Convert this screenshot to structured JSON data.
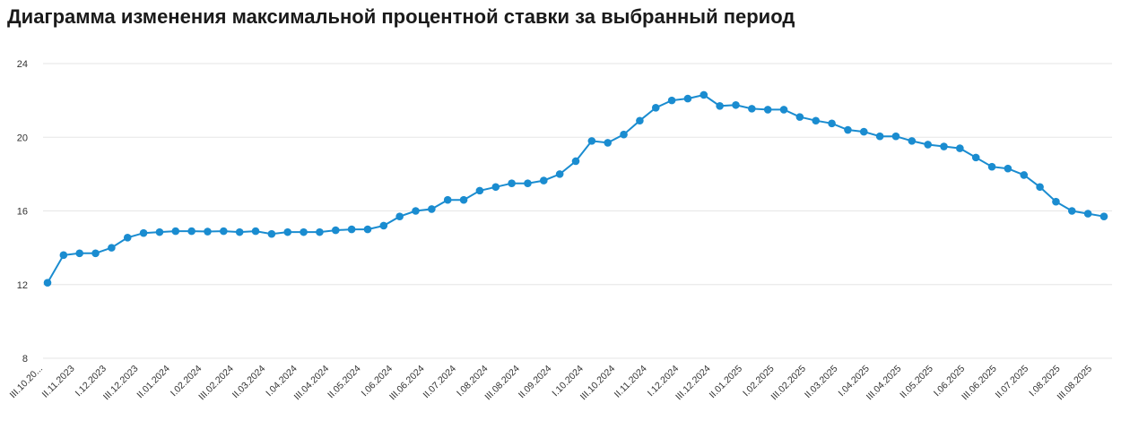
{
  "page_title": "Диаграмма изменения максимальной процентной ставки за выбранный период",
  "colors": {
    "series": "#1a8cd0",
    "grid": "#e6e6e6",
    "text": "#333333"
  },
  "chart_data": {
    "type": "line",
    "title": "",
    "xlabel": "",
    "ylabel": "",
    "ylim": [
      8,
      24
    ],
    "yticks": [
      8,
      12,
      16,
      20,
      24
    ],
    "grid": true,
    "x_tick_labels": [
      "III.10.20...",
      "II.11.2023",
      "I.12.2023",
      "III.12.2023",
      "II.01.2024",
      "I.02.2024",
      "III.02.2024",
      "II.03.2024",
      "I.04.2024",
      "III.04.2024",
      "II.05.2024",
      "I.06.2024",
      "III.06.2024",
      "II.07.2024",
      "I.08.2024",
      "III.08.2024",
      "II.09.2024",
      "I.10.2024",
      "III.10.2024",
      "II.11.2024",
      "I.12.2024",
      "III.12.2024",
      "II.01.2025",
      "I.02.2025",
      "III.02.2025",
      "II.03.2025",
      "I.04.2025",
      "III.04.2025",
      "II.05.2025",
      "I.06.2025",
      "III.06.2025",
      "II.07.2025",
      "I.08.2025",
      "III.08.2025"
    ],
    "series": [
      {
        "values": [
          12.1,
          13.6,
          13.7,
          13.7,
          14.0,
          14.55,
          14.8,
          14.85,
          14.9,
          14.9,
          14.88,
          14.9,
          14.85,
          14.9,
          14.75,
          14.85,
          14.85,
          14.85,
          14.95,
          15.0,
          15.0,
          15.2,
          15.7,
          16.0,
          16.1,
          16.6,
          16.6,
          17.1,
          17.3,
          17.5,
          17.5,
          17.65,
          18.0,
          18.7,
          19.8,
          19.7,
          20.15,
          20.9,
          21.6,
          22.0,
          22.1,
          22.3,
          21.7,
          21.75,
          21.55,
          21.5,
          21.5,
          21.1,
          20.9,
          20.75,
          20.4,
          20.3,
          20.05,
          20.05,
          19.8,
          19.6,
          19.5,
          19.4,
          18.9,
          18.4,
          18.3,
          17.95,
          17.3,
          16.5,
          16.0,
          15.85,
          15.7
        ]
      }
    ]
  }
}
